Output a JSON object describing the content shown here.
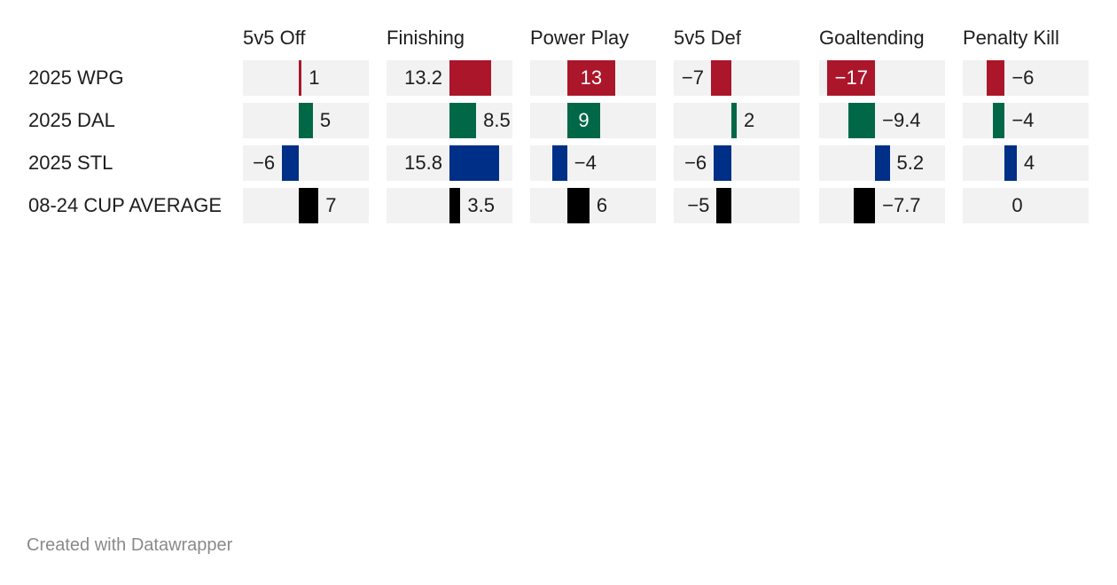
{
  "chart_data": {
    "type": "table",
    "columns": [
      "5v5 Off",
      "Finishing",
      "Power Play",
      "5v5 Def",
      "Goaltending",
      "Penalty Kill"
    ],
    "rows": [
      {
        "label": "2025 WPG",
        "color": "#ab162b",
        "values": [
          1,
          13.2,
          13,
          -7,
          -17,
          -6
        ],
        "display": [
          "1",
          "13.2",
          "13",
          "−7",
          "−17",
          "−6"
        ]
      },
      {
        "label": "2025 DAL",
        "color": "#006847",
        "values": [
          5,
          8.5,
          9,
          2,
          -9.4,
          -4
        ],
        "display": [
          "5",
          "8.5",
          "9",
          "2",
          "−9.4",
          "−4"
        ]
      },
      {
        "label": "2025 STL",
        "color": "#002f87",
        "values": [
          -6,
          15.8,
          -4,
          -6,
          5.2,
          4
        ],
        "display": [
          "−6",
          "15.8",
          "−4",
          "−6",
          "5.2",
          "4"
        ]
      },
      {
        "label": "08-24 CUP AVERAGE",
        "color": "#000000",
        "values": [
          7,
          3.5,
          6,
          -5,
          -7.7,
          0
        ],
        "display": [
          "7",
          "3.5",
          "6",
          "−5",
          "−7.7",
          "0"
        ]
      }
    ],
    "axis_zero": [
      -20,
      -20,
      -10,
      -20,
      -20,
      -14
    ],
    "axis_max": [
      25,
      20,
      24,
      24,
      25,
      28
    ]
  },
  "footer": {
    "credit": "Created with Datawrapper"
  },
  "colors": {
    "cell_background": "#f2f2f2",
    "text": "#1d1d1d",
    "text_on_bar": "#ffffff",
    "footer_text": "#8a8a8a"
  }
}
